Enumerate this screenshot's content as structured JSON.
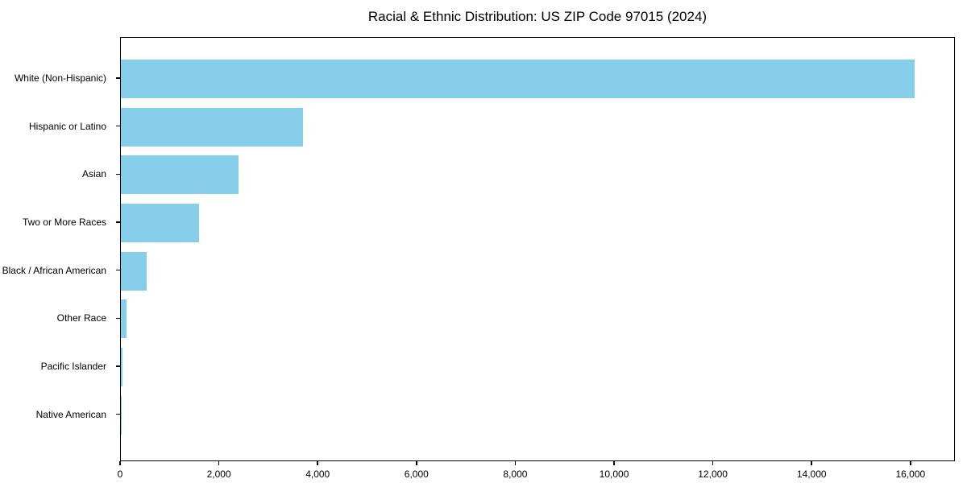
{
  "title": "Racial & Ethnic Distribution: US ZIP Code 97015 (2024)",
  "chart_data": {
    "type": "bar",
    "orientation": "horizontal",
    "title": "Racial & Ethnic Distribution: US ZIP Code 97015 (2024)",
    "categories": [
      "White (Non-Hispanic)",
      "Hispanic or Latino",
      "Asian",
      "Two or More Races",
      "Black / African American",
      "Other Race",
      "Pacific Islander",
      "Native American"
    ],
    "values": [
      16100,
      3700,
      2390,
      1580,
      530,
      110,
      25,
      12
    ],
    "xlabel": "",
    "ylabel": "",
    "xlim": [
      0,
      16900
    ],
    "x_ticks": [
      0,
      2000,
      4000,
      6000,
      8000,
      10000,
      12000,
      14000,
      16000
    ],
    "x_tick_labels": [
      "0",
      "2,000",
      "4,000",
      "6,000",
      "8,000",
      "10,000",
      "12,000",
      "14,000",
      "16,000"
    ],
    "bar_color": "#87CEEB",
    "spine_color": "#000000",
    "text_color": "#000000",
    "grid": false,
    "legend": "none"
  }
}
